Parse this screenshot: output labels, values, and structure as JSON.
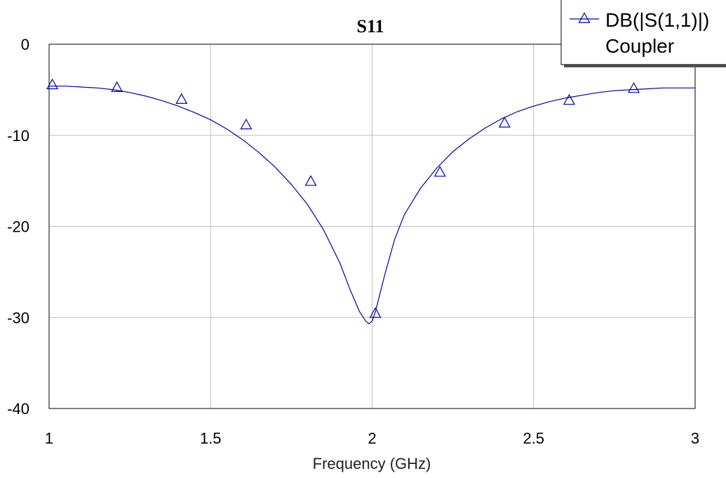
{
  "chart_data": {
    "type": "line",
    "title": "S11",
    "xlabel": "Frequency (GHz)",
    "ylabel": "",
    "xlim": [
      1,
      3
    ],
    "ylim": [
      -40,
      0
    ],
    "x_ticks": [
      1,
      1.5,
      2,
      2.5,
      3
    ],
    "x_tick_labels": [
      "1",
      "1.5",
      "2",
      "2.5",
      "3"
    ],
    "y_ticks": [
      0,
      -10,
      -20,
      -30,
      -40
    ],
    "y_tick_labels": [
      "0",
      "-10",
      "-20",
      "-30",
      "-40"
    ],
    "grid": true,
    "legend_position": "top-right",
    "series": [
      {
        "name": "DB(|S(1,1)|)",
        "subtitle": "Coupler",
        "color": "#0000aa",
        "marker": "triangle",
        "x": [
          1.0,
          1.05,
          1.1,
          1.15,
          1.2,
          1.25,
          1.3,
          1.35,
          1.4,
          1.45,
          1.5,
          1.55,
          1.6,
          1.65,
          1.7,
          1.75,
          1.8,
          1.85,
          1.9,
          1.93,
          1.96,
          1.98,
          1.99,
          2.0,
          2.01,
          2.02,
          2.04,
          2.07,
          2.1,
          2.15,
          2.2,
          2.25,
          2.3,
          2.35,
          2.4,
          2.45,
          2.5,
          2.55,
          2.6,
          2.65,
          2.7,
          2.75,
          2.8,
          2.85,
          2.9,
          2.95,
          3.0
        ],
        "y": [
          -4.6,
          -4.6,
          -4.7,
          -4.8,
          -5.0,
          -5.3,
          -5.7,
          -6.2,
          -6.8,
          -7.5,
          -8.3,
          -9.3,
          -10.5,
          -11.9,
          -13.5,
          -15.4,
          -17.6,
          -20.4,
          -24.0,
          -26.8,
          -29.3,
          -30.4,
          -30.7,
          -30.4,
          -29.4,
          -28.0,
          -25.2,
          -21.4,
          -18.7,
          -15.8,
          -13.6,
          -11.8,
          -10.4,
          -9.2,
          -8.2,
          -7.4,
          -6.8,
          -6.3,
          -5.9,
          -5.6,
          -5.3,
          -5.1,
          -5.0,
          -4.9,
          -4.8,
          -4.8,
          -4.8
        ],
        "marker_x": [
          1.01,
          1.21,
          1.41,
          1.61,
          1.81,
          2.01,
          2.21,
          2.41,
          2.61,
          2.81
        ],
        "marker_y": [
          -4.5,
          -4.8,
          -6.1,
          -8.9,
          -15.1,
          -29.6,
          -14.1,
          -8.7,
          -6.2,
          -4.9
        ]
      }
    ]
  }
}
